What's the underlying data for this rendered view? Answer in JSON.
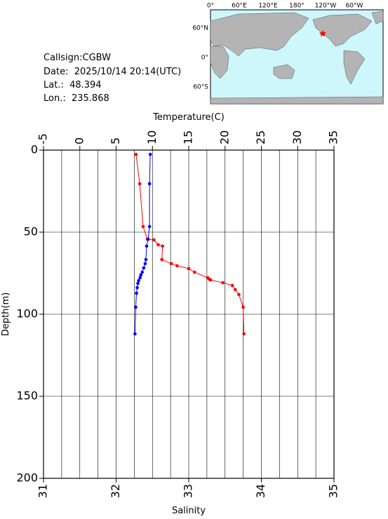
{
  "info": {
    "callsign": "Callsign:CGBW",
    "date": "Date:  2025/10/14 20:14(UTC)",
    "lat": "Lat.:  48.394",
    "lon": "Lon.:  235.868"
  },
  "map": {
    "lon_labels": [
      "0°",
      "60°E",
      "120°E",
      "180°",
      "120°W",
      "60°W"
    ],
    "lat_labels": [
      "60°N",
      "0°",
      "60°S"
    ]
  },
  "chart_data": {
    "type": "line",
    "xlabel": "Temperature(C)",
    "x2label": "Salinity",
    "ylabel": "Depth(m)",
    "xlim": [
      -5,
      35
    ],
    "xticks": [
      -5,
      0,
      5,
      10,
      15,
      20,
      25,
      30,
      35
    ],
    "xgrid": [
      -2.5,
      2.5,
      7.5,
      12.5,
      17.5,
      22.5,
      27.5,
      32.5
    ],
    "x2lim": [
      31,
      35
    ],
    "x2ticks": [
      31,
      32,
      33,
      34,
      35
    ],
    "ylim": [
      0,
      200
    ],
    "yticks": [
      0,
      50,
      100,
      150,
      200
    ],
    "y_inverted": true,
    "grid": true,
    "series": [
      {
        "color": "#ff0000",
        "axis": "x",
        "depth": [
          2.6,
          20.5,
          46.6,
          54.3,
          54.7,
          57.7,
          58.5,
          66.7,
          69.2,
          70.5,
          72.2,
          74.4,
          77.8,
          78.6,
          79.1,
          80.8,
          82.5,
          85.0,
          88.0,
          95.7,
          112.0
        ],
        "values": [
          7.75,
          8.24,
          8.72,
          9.3,
          10.2,
          10.8,
          11.4,
          11.3,
          12.6,
          13.4,
          15.0,
          15.8,
          17.6,
          17.8,
          18.0,
          19.7,
          21.0,
          21.4,
          21.9,
          22.5,
          22.6
        ]
      },
      {
        "color": "#0000ff",
        "axis": "x2",
        "depth": [
          2.6,
          20.5,
          46.6,
          54.3,
          58.5,
          66.7,
          69.2,
          71.8,
          74.4,
          76.1,
          77.8,
          79.5,
          81.2,
          83.8,
          87.2,
          95.7,
          112.0
        ],
        "values": [
          32.47,
          32.46,
          32.46,
          32.44,
          32.42,
          32.41,
          32.4,
          32.38,
          32.36,
          32.34,
          32.33,
          32.31,
          32.3,
          32.29,
          32.28,
          32.27,
          32.26
        ]
      }
    ]
  }
}
